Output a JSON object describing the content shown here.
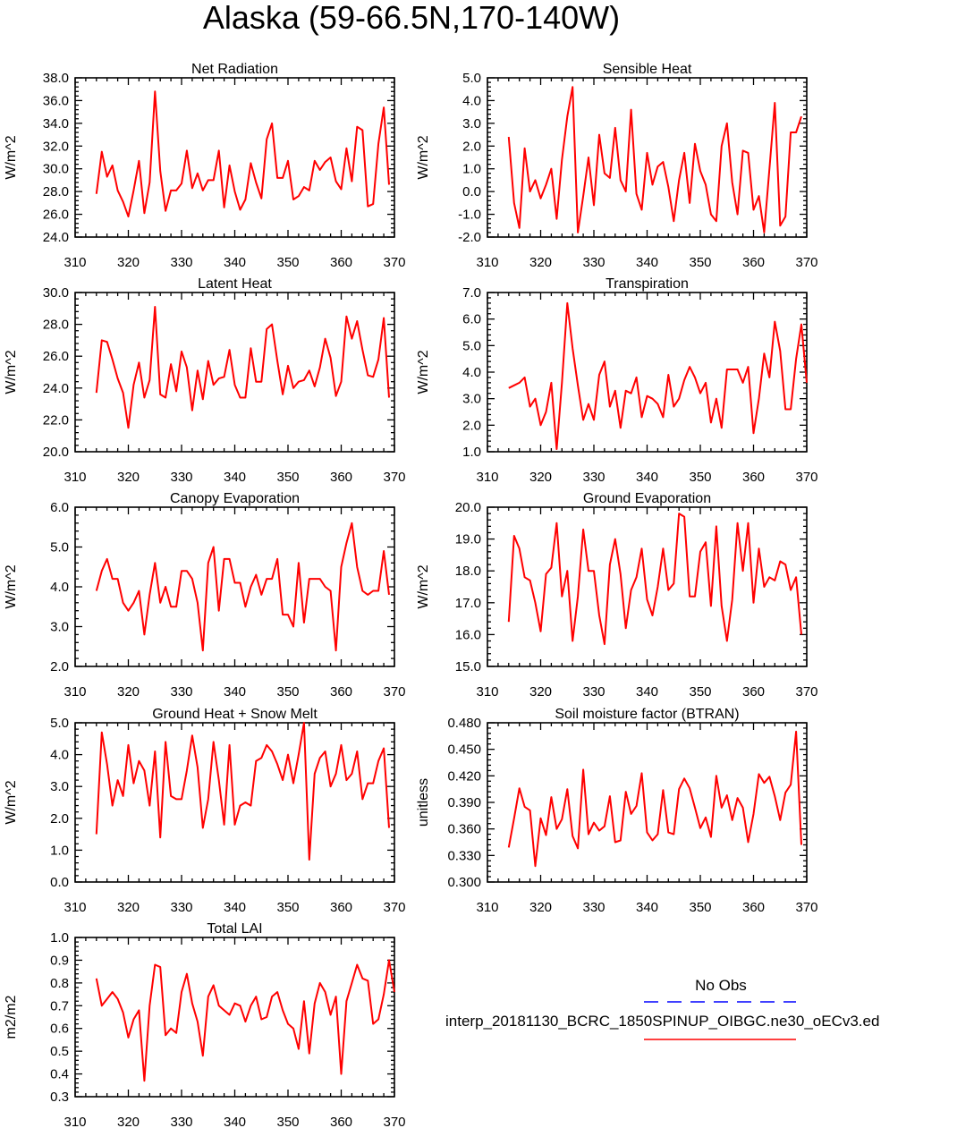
{
  "figure_title": "Alaska (59-66.5N,170-140W)",
  "colors": {
    "model": "#ff0000",
    "obs": "#0000ff"
  },
  "legend": {
    "obs_label": "No Obs",
    "model_label": "interp_20181130_BCRC_1850SPINUP_OIBGC.ne30_oECv3.ed"
  },
  "chart_data": [
    {
      "type": "line",
      "title": "Net Radiation",
      "ylabel": "W/m^2",
      "xlim": [
        310,
        370
      ],
      "ylim": [
        24,
        38
      ],
      "xticks": [
        "310",
        "320",
        "330",
        "340",
        "350",
        "360",
        "370"
      ],
      "yticks": [
        "24.0",
        "26.0",
        "28.0",
        "30.0",
        "32.0",
        "34.0",
        "36.0",
        "38.0"
      ],
      "x_start": 314,
      "series": [
        {
          "name": "model",
          "values": [
            27.8,
            31.5,
            29.3,
            30.3,
            28.1,
            27.1,
            25.8,
            28.1,
            30.7,
            26.1,
            28.8,
            36.8,
            29.8,
            26.3,
            28.1,
            28.1,
            28.7,
            31.6,
            28.3,
            29.6,
            28.1,
            29.0,
            29.0,
            31.6,
            26.6,
            30.3,
            28.0,
            26.4,
            27.3,
            30.5,
            28.8,
            27.4,
            32.6,
            34.0,
            29.2,
            29.2,
            30.7,
            27.3,
            27.6,
            28.4,
            28.1,
            30.7,
            29.9,
            30.6,
            31.0,
            28.9,
            28.2,
            31.8,
            28.9,
            33.7,
            33.4,
            26.7,
            26.9,
            32.2,
            35.4,
            28.6
          ]
        }
      ]
    },
    {
      "type": "line",
      "title": "Sensible Heat",
      "ylabel": "W/m^2",
      "xlim": [
        310,
        370
      ],
      "ylim": [
        -2,
        5
      ],
      "xticks": [
        "310",
        "320",
        "330",
        "340",
        "350",
        "360",
        "370"
      ],
      "yticks": [
        "-2.0",
        "-1.0",
        "0.0",
        "1.0",
        "2.0",
        "3.0",
        "4.0",
        "5.0"
      ],
      "x_start": 314,
      "series": [
        {
          "name": "model",
          "values": [
            2.4,
            -0.5,
            -1.6,
            1.9,
            0.0,
            0.5,
            -0.3,
            0.3,
            1.0,
            -1.2,
            1.4,
            3.3,
            4.6,
            -1.8,
            -0.2,
            1.5,
            -0.6,
            2.5,
            0.8,
            0.6,
            2.8,
            0.5,
            0.0,
            3.6,
            -0.1,
            -0.8,
            1.7,
            0.3,
            1.1,
            1.3,
            0.2,
            -1.3,
            0.5,
            1.7,
            -0.5,
            2.1,
            0.9,
            0.3,
            -1.0,
            -1.3,
            2.0,
            3.0,
            0.4,
            -1.0,
            1.8,
            1.7,
            -0.8,
            -0.2,
            -1.8,
            1.0,
            3.9,
            -1.5,
            -1.1,
            2.6,
            2.6,
            3.3
          ]
        }
      ]
    },
    {
      "type": "line",
      "title": "Latent Heat",
      "ylabel": "W/m^2",
      "xlim": [
        310,
        370
      ],
      "ylim": [
        20,
        30
      ],
      "xticks": [
        "310",
        "320",
        "330",
        "340",
        "350",
        "360",
        "370"
      ],
      "yticks": [
        "20.0",
        "22.0",
        "24.0",
        "26.0",
        "28.0",
        "30.0"
      ],
      "x_start": 314,
      "series": [
        {
          "name": "model",
          "values": [
            23.7,
            27.0,
            26.9,
            25.8,
            24.6,
            23.7,
            21.5,
            24.2,
            25.6,
            23.4,
            24.5,
            29.1,
            23.6,
            23.4,
            25.5,
            23.8,
            26.3,
            25.3,
            22.6,
            25.1,
            23.3,
            25.7,
            24.2,
            24.6,
            24.7,
            26.4,
            24.2,
            23.4,
            23.4,
            26.5,
            24.4,
            24.4,
            27.7,
            28.0,
            25.7,
            23.6,
            25.4,
            24.0,
            24.4,
            24.5,
            25.1,
            24.1,
            25.3,
            27.1,
            25.9,
            23.5,
            24.4,
            28.5,
            27.1,
            28.2,
            26.4,
            24.8,
            24.7,
            25.8,
            28.4,
            23.4
          ]
        }
      ]
    },
    {
      "type": "line",
      "title": "Transpiration",
      "ylabel": "W/m^2",
      "xlim": [
        310,
        370
      ],
      "ylim": [
        1,
        7
      ],
      "xticks": [
        "310",
        "320",
        "330",
        "340",
        "350",
        "360",
        "370"
      ],
      "yticks": [
        "1.0",
        "2.0",
        "3.0",
        "4.0",
        "5.0",
        "6.0",
        "7.0"
      ],
      "x_start": 314,
      "series": [
        {
          "name": "model",
          "values": [
            3.4,
            3.5,
            3.6,
            3.8,
            2.7,
            3.0,
            2.0,
            2.5,
            3.6,
            1.1,
            3.6,
            6.6,
            4.9,
            3.5,
            2.2,
            2.8,
            2.2,
            3.9,
            4.4,
            2.7,
            3.3,
            1.9,
            3.3,
            3.2,
            3.8,
            2.3,
            3.1,
            3.0,
            2.8,
            2.3,
            3.9,
            2.7,
            3.0,
            3.7,
            4.2,
            3.8,
            3.2,
            3.6,
            2.1,
            3.0,
            1.9,
            4.1,
            4.1,
            4.1,
            3.6,
            4.2,
            1.7,
            3.0,
            4.7,
            3.8,
            5.9,
            4.8,
            2.6,
            2.6,
            4.5,
            5.8,
            3.6
          ]
        }
      ]
    },
    {
      "type": "line",
      "title": "Canopy Evaporation",
      "ylabel": "W/m^2",
      "xlim": [
        310,
        370
      ],
      "ylim": [
        2,
        6
      ],
      "xticks": [
        "310",
        "320",
        "330",
        "340",
        "350",
        "360",
        "370"
      ],
      "yticks": [
        "2.0",
        "3.0",
        "4.0",
        "5.0",
        "6.0"
      ],
      "x_start": 314,
      "series": [
        {
          "name": "model",
          "values": [
            3.9,
            4.4,
            4.7,
            4.2,
            4.2,
            3.6,
            3.4,
            3.6,
            3.9,
            2.8,
            3.8,
            4.6,
            3.6,
            4.0,
            3.5,
            3.5,
            4.4,
            4.4,
            4.2,
            3.6,
            2.4,
            4.6,
            5.0,
            3.4,
            4.7,
            4.7,
            4.1,
            4.1,
            3.5,
            4.0,
            4.3,
            3.8,
            4.2,
            4.2,
            4.7,
            3.3,
            3.3,
            3.0,
            4.6,
            3.1,
            4.2,
            4.2,
            4.2,
            4.0,
            3.9,
            2.4,
            4.5,
            5.1,
            5.6,
            4.5,
            3.9,
            3.8,
            3.9,
            3.9,
            4.9,
            3.8
          ]
        }
      ]
    },
    {
      "type": "line",
      "title": "Ground Evaporation",
      "ylabel": "W/m^2",
      "xlim": [
        310,
        370
      ],
      "ylim": [
        15,
        20
      ],
      "xticks": [
        "310",
        "320",
        "330",
        "340",
        "350",
        "360",
        "370"
      ],
      "yticks": [
        "15.0",
        "16.0",
        "17.0",
        "18.0",
        "19.0",
        "20.0"
      ],
      "x_start": 314,
      "series": [
        {
          "name": "model",
          "values": [
            16.4,
            19.1,
            18.7,
            17.8,
            17.7,
            17.0,
            16.1,
            17.9,
            18.1,
            19.5,
            17.2,
            18.0,
            15.8,
            17.2,
            19.3,
            18.0,
            18.0,
            16.6,
            15.7,
            18.2,
            19.0,
            17.9,
            16.2,
            17.4,
            17.8,
            18.7,
            17.1,
            16.6,
            17.5,
            18.7,
            17.4,
            17.6,
            19.8,
            19.7,
            17.2,
            17.2,
            18.6,
            18.9,
            16.9,
            19.4,
            16.9,
            15.8,
            17.1,
            19.5,
            18.0,
            19.5,
            17.0,
            18.7,
            17.5,
            17.8,
            17.7,
            18.3,
            18.2,
            17.4,
            17.8,
            16.0
          ]
        }
      ]
    },
    {
      "type": "line",
      "title": "Ground Heat + Snow Melt",
      "ylabel": "W/m^2",
      "xlim": [
        310,
        370
      ],
      "ylim": [
        0,
        5
      ],
      "xticks": [
        "310",
        "320",
        "330",
        "340",
        "350",
        "360",
        "370"
      ],
      "yticks": [
        "0.0",
        "1.0",
        "2.0",
        "3.0",
        "4.0",
        "5.0"
      ],
      "x_start": 314,
      "series": [
        {
          "name": "model",
          "values": [
            1.5,
            4.7,
            3.7,
            2.4,
            3.2,
            2.7,
            4.3,
            3.1,
            3.8,
            3.5,
            2.4,
            4.1,
            1.4,
            4.4,
            2.7,
            2.6,
            2.6,
            3.5,
            4.6,
            3.6,
            1.7,
            2.6,
            4.4,
            3.2,
            1.8,
            4.3,
            1.8,
            2.4,
            2.5,
            2.4,
            3.8,
            3.9,
            4.3,
            4.1,
            3.7,
            3.2,
            4.0,
            3.1,
            4.0,
            5.0,
            0.7,
            3.4,
            3.9,
            4.1,
            3.0,
            3.4,
            4.3,
            3.2,
            3.4,
            4.1,
            2.6,
            3.1,
            3.1,
            3.8,
            4.2,
            1.7
          ]
        }
      ]
    },
    {
      "type": "line",
      "title": "Soil moisture factor (BTRAN)",
      "ylabel": "unitless",
      "xlim": [
        310,
        370
      ],
      "ylim": [
        0.3,
        0.48
      ],
      "xticks": [
        "310",
        "320",
        "330",
        "340",
        "350",
        "360",
        "370"
      ],
      "yticks": [
        "0.300",
        "0.330",
        "0.360",
        "0.390",
        "0.420",
        "0.450",
        "0.480"
      ],
      "x_start": 314,
      "series": [
        {
          "name": "model",
          "values": [
            0.339,
            0.372,
            0.406,
            0.385,
            0.381,
            0.318,
            0.372,
            0.353,
            0.396,
            0.36,
            0.371,
            0.405,
            0.352,
            0.338,
            0.427,
            0.354,
            0.367,
            0.358,
            0.363,
            0.397,
            0.345,
            0.347,
            0.402,
            0.377,
            0.386,
            0.423,
            0.356,
            0.347,
            0.354,
            0.404,
            0.356,
            0.354,
            0.405,
            0.417,
            0.406,
            0.384,
            0.361,
            0.373,
            0.351,
            0.42,
            0.384,
            0.398,
            0.37,
            0.395,
            0.384,
            0.345,
            0.377,
            0.422,
            0.412,
            0.419,
            0.397,
            0.37,
            0.401,
            0.41,
            0.47,
            0.342
          ]
        }
      ]
    },
    {
      "type": "line",
      "title": "Total LAI",
      "ylabel": "m2/m2",
      "xlim": [
        310,
        370
      ],
      "ylim": [
        0.3,
        1.0
      ],
      "xticks": [
        "310",
        "320",
        "330",
        "340",
        "350",
        "360",
        "370"
      ],
      "yticks": [
        "0.3",
        "0.4",
        "0.5",
        "0.6",
        "0.7",
        "0.8",
        "0.9",
        "1.0"
      ],
      "x_start": 314,
      "series": [
        {
          "name": "model",
          "values": [
            0.82,
            0.7,
            0.73,
            0.76,
            0.73,
            0.67,
            0.56,
            0.64,
            0.68,
            0.37,
            0.7,
            0.88,
            0.87,
            0.57,
            0.6,
            0.58,
            0.76,
            0.84,
            0.71,
            0.63,
            0.48,
            0.74,
            0.79,
            0.7,
            0.68,
            0.66,
            0.71,
            0.7,
            0.63,
            0.7,
            0.74,
            0.64,
            0.65,
            0.74,
            0.76,
            0.68,
            0.62,
            0.6,
            0.51,
            0.72,
            0.49,
            0.71,
            0.8,
            0.76,
            0.66,
            0.74,
            0.4,
            0.72,
            0.8,
            0.88,
            0.82,
            0.81,
            0.62,
            0.64,
            0.75,
            0.9,
            0.76
          ]
        }
      ]
    }
  ]
}
